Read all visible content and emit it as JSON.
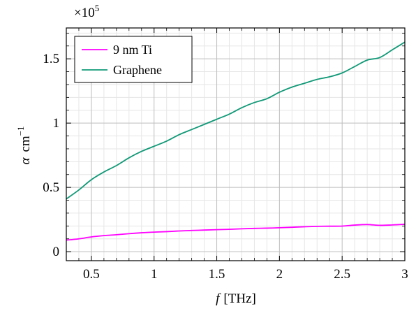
{
  "chart_data": {
    "type": "line",
    "xlabel": "f [THz]",
    "xlabel_italic_part": "f",
    "xlabel_unit": "[THz]",
    "ylabel": "α cm⁻¹",
    "ylabel_symbol": "α",
    "ylabel_unit": "cm",
    "ylabel_exp": "−1",
    "y_multiplier": "×10⁵",
    "y_multiplier_base": "×10",
    "y_multiplier_exp": "5",
    "xlim": [
      0.3,
      3.0
    ],
    "ylim": [
      -0.07,
      1.74
    ],
    "x_ticks": [
      0.5,
      1,
      1.5,
      2,
      2.5,
      3
    ],
    "x_tick_labels": [
      "0.5",
      "1",
      "1.5",
      "2",
      "2.5",
      "3"
    ],
    "y_ticks": [
      0,
      0.5,
      1,
      1.5
    ],
    "y_tick_labels": [
      "0",
      "0.5",
      "1",
      "1.5"
    ],
    "grid": true,
    "legend_position": "top-left",
    "series": [
      {
        "name": "9 nm Ti",
        "color": "#ff00ff",
        "x": [
          0.3,
          0.4,
          0.5,
          0.6,
          0.7,
          0.8,
          0.9,
          1.0,
          1.1,
          1.2,
          1.3,
          1.4,
          1.5,
          1.6,
          1.7,
          1.8,
          1.9,
          2.0,
          2.1,
          2.2,
          2.3,
          2.4,
          2.5,
          2.6,
          2.7,
          2.8,
          2.9,
          3.0
        ],
        "y": [
          0.09,
          0.1,
          0.115,
          0.125,
          0.132,
          0.14,
          0.147,
          0.152,
          0.156,
          0.161,
          0.165,
          0.168,
          0.171,
          0.174,
          0.178,
          0.181,
          0.183,
          0.186,
          0.19,
          0.194,
          0.197,
          0.198,
          0.199,
          0.207,
          0.211,
          0.205,
          0.208,
          0.213
        ]
      },
      {
        "name": "Graphene",
        "color": "#119977",
        "x": [
          0.3,
          0.4,
          0.5,
          0.6,
          0.7,
          0.8,
          0.9,
          1.0,
          1.1,
          1.2,
          1.3,
          1.4,
          1.5,
          1.6,
          1.7,
          1.8,
          1.9,
          2.0,
          2.1,
          2.2,
          2.3,
          2.4,
          2.5,
          2.6,
          2.7,
          2.8,
          2.9,
          3.0
        ],
        "y": [
          0.41,
          0.48,
          0.56,
          0.62,
          0.67,
          0.73,
          0.78,
          0.82,
          0.86,
          0.91,
          0.95,
          0.99,
          1.03,
          1.07,
          1.12,
          1.16,
          1.19,
          1.24,
          1.28,
          1.31,
          1.34,
          1.36,
          1.39,
          1.44,
          1.49,
          1.51,
          1.57,
          1.63
        ]
      }
    ]
  }
}
